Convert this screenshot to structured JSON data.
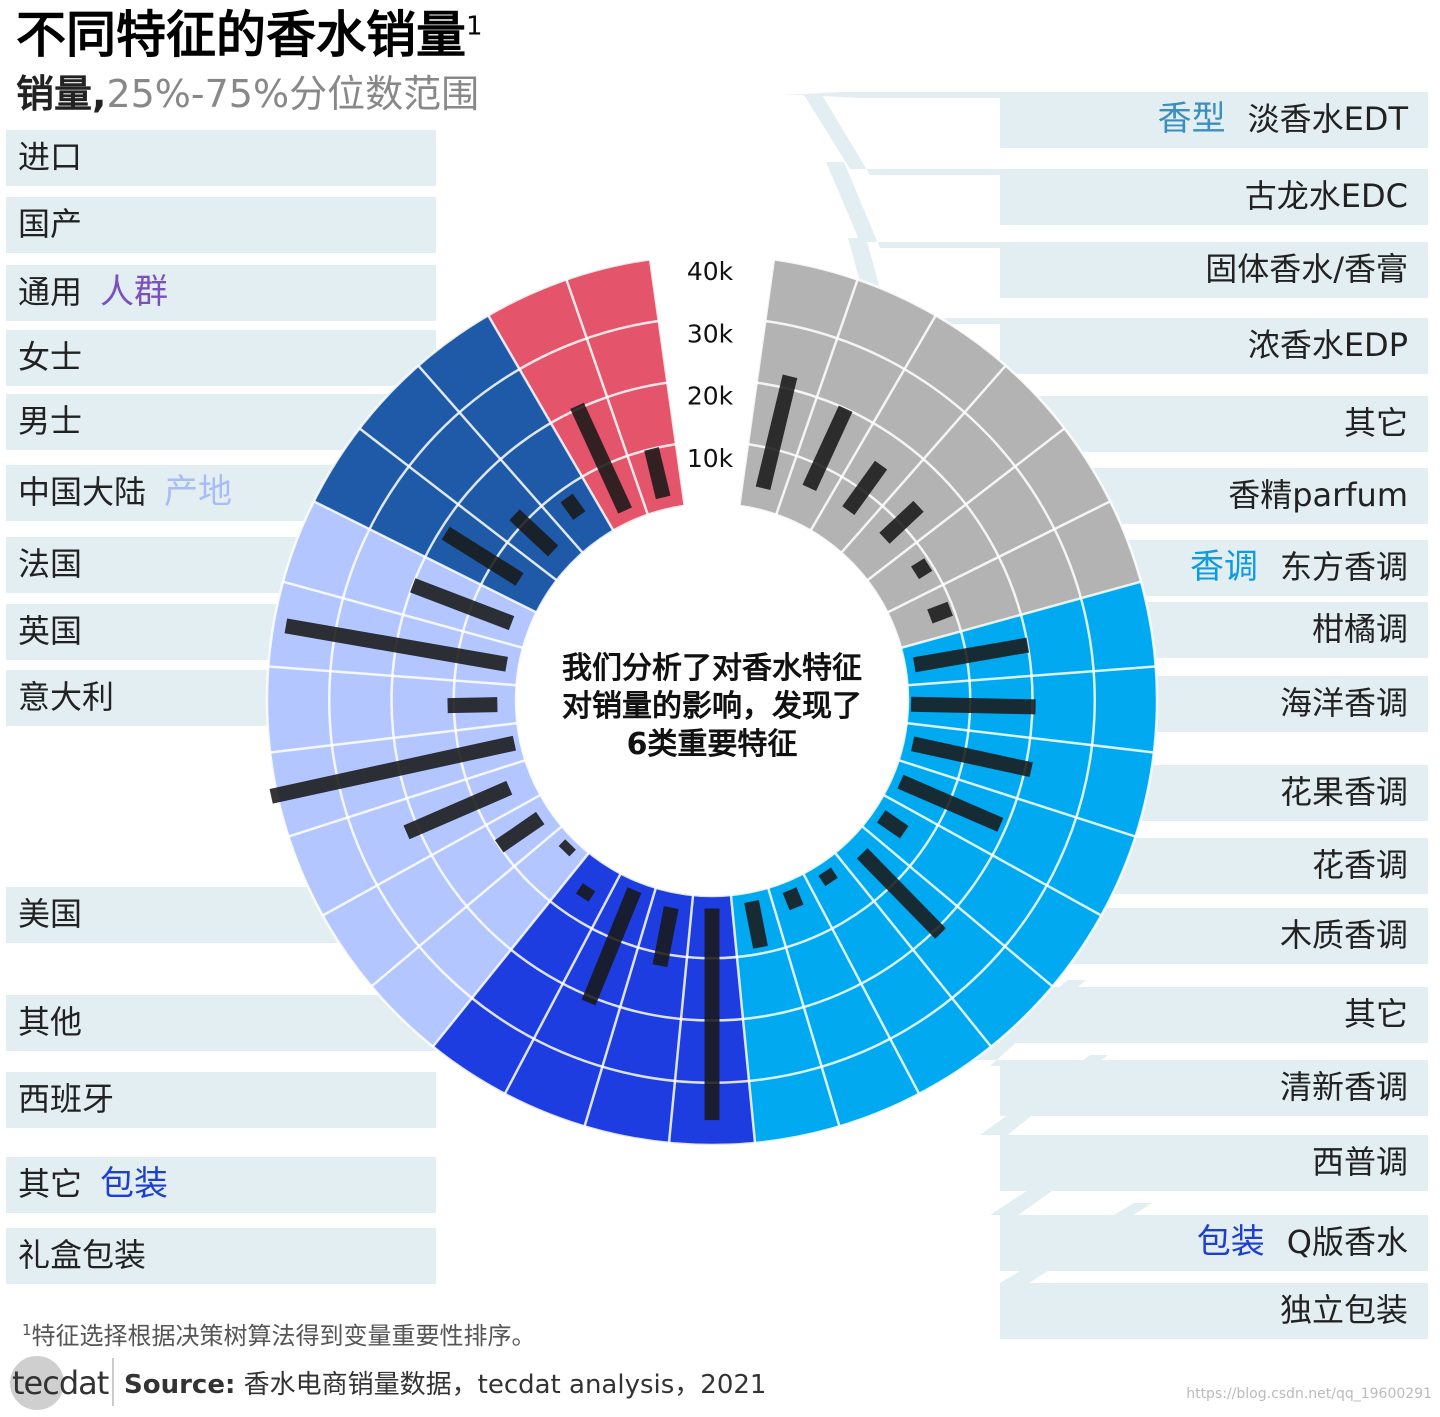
{
  "title": "不同特征的香水销量",
  "title_sup": "1",
  "subtitle_bold": "销量,",
  "subtitle_gray": "25%-75%分位数范围",
  "center_text": [
    "我们分析了对香水特征",
    "对销量的影响，发现了",
    "6类重要特征"
  ],
  "footnote_sup": "1",
  "footnote": "特征选择根据决策树算法得到变量重要性排序。",
  "source_label": "Source:",
  "source_text": " 香水电商销量数据，tecdat analysis，2021",
  "logo_text": "tecdat",
  "watermark": "https://blog.csdn.net/qq_19600291",
  "chart_data": {
    "type": "radial-range-bar",
    "axis_ticks": [
      "10k",
      "20k",
      "30k",
      "40k"
    ],
    "ylim": [
      0,
      40000
    ],
    "groups": [
      {
        "name": "香型",
        "color": "#b3b3b3",
        "label_color": "#3a8fc0",
        "categories": [
          {
            "name": "淡香水EDT",
            "range": [
              3500,
              22000
            ]
          },
          {
            "name": "古龙水EDC",
            "range": [
              6000,
              20000
            ]
          },
          {
            "name": "固体香水/香膏",
            "range": [
              6000,
              15000
            ]
          },
          {
            "name": "浓香水EDP",
            "range": [
              6500,
              14000
            ]
          },
          {
            "name": "其它",
            "range": [
              7000,
              9500
            ]
          },
          {
            "name": "香精parfum",
            "range": [
              6000,
              9500
            ]
          }
        ]
      },
      {
        "name": "香调",
        "color": "#00a9f0",
        "label_color": "#0e9be0",
        "categories": [
          {
            "name": "东方香调",
            "range": [
              1500,
              20000
            ]
          },
          {
            "name": "柑橘调",
            "range": [
              500,
              20500
            ]
          },
          {
            "name": "海洋香调",
            "range": [
              1500,
              21000
            ]
          },
          {
            "name": "花果香调",
            "range": [
              1500,
              19000
            ]
          },
          {
            "name": "花香调",
            "range": [
              1500,
              6000
            ]
          },
          {
            "name": "木质香调",
            "range": [
              3000,
              21000
            ]
          },
          {
            "name": "其它",
            "range": [
              1500,
              3500
            ]
          },
          {
            "name": "清新香调",
            "range": [
              1500,
              4500
            ]
          },
          {
            "name": "西普调",
            "range": [
              1500,
              9000
            ]
          }
        ]
      },
      {
        "name": "包装",
        "color": "#1e3de0",
        "label_color": "#1e3fce",
        "categories": [
          {
            "name": "Q版香水",
            "range": [
              2000,
              36000
            ]
          },
          {
            "name": "独立包装",
            "range": [
              2500,
              12000
            ]
          },
          {
            "name": "其它",
            "range": [
              1500,
              21000
            ]
          },
          {
            "name": "礼盒包装",
            "range": [
              4500,
              6500
            ]
          }
        ]
      },
      {
        "name": "产地",
        "color": "#b3c6ff",
        "label_color": "#a8bcf5",
        "categories": [
          {
            "name": "美国",
            "range": [
              1000,
              2500
            ]
          },
          {
            "name": "其他",
            "range": [
              2000,
              10000
            ]
          },
          {
            "name": "西班牙",
            "range": [
              4000,
              22000
            ]
          },
          {
            "name": "意大利",
            "range": [
              1000,
              41000
            ]
          },
          {
            "name": "英国",
            "range": [
              3000,
              11000
            ]
          },
          {
            "name": "法国",
            "range": [
              2000,
              38000
            ]
          },
          {
            "name": "中国大陆",
            "range": [
              3000,
              20000
            ]
          }
        ]
      },
      {
        "name": "人群",
        "color": "#1e5aa8",
        "label_color": "#7a4fc0",
        "categories": [
          {
            "name": "男士",
            "range": [
              5000,
              19000
            ]
          },
          {
            "name": "女士",
            "range": [
              3500,
              12000
            ]
          },
          {
            "name": "通用",
            "range": [
              5000,
              8500
            ]
          }
        ]
      },
      {
        "name": "产地",
        "color": "#e4546a",
        "label_color": "#a8bcf5",
        "categories": [
          {
            "name": "国产",
            "range": [
              2000,
              20500
            ]
          },
          {
            "name": "进口",
            "range": [
              2000,
              10000
            ]
          }
        ]
      }
    ],
    "right_labels": [
      {
        "text": "淡香水EDT",
        "tag": "香型"
      },
      {
        "text": "古龙水EDC"
      },
      {
        "text": "固体香水/香膏"
      },
      {
        "text": "浓香水EDP"
      },
      {
        "text": "其它"
      },
      {
        "text": "香精parfum"
      },
      {
        "text": "东方香调",
        "tag": "香调"
      },
      {
        "text": "柑橘调"
      },
      {
        "text": "海洋香调"
      },
      {
        "text": "花果香调"
      },
      {
        "text": "花香调"
      },
      {
        "text": "木质香调"
      },
      {
        "text": "其它"
      },
      {
        "text": "清新香调"
      },
      {
        "text": "西普调"
      },
      {
        "text": "Q版香水",
        "tag": "包装"
      },
      {
        "text": "独立包装"
      }
    ],
    "left_labels": [
      {
        "text": "进口"
      },
      {
        "text": "国产"
      },
      {
        "text": "通用",
        "tag": "人群"
      },
      {
        "text": "女士"
      },
      {
        "text": "男士"
      },
      {
        "text": "中国大陆",
        "tag": "产地"
      },
      {
        "text": "法国"
      },
      {
        "text": "英国"
      },
      {
        "text": "意大利"
      },
      {
        "text": "美国"
      },
      {
        "text": "其他"
      },
      {
        "text": "西班牙"
      },
      {
        "text": "其它",
        "tag": "包装"
      },
      {
        "text": "礼盒包装"
      }
    ]
  }
}
